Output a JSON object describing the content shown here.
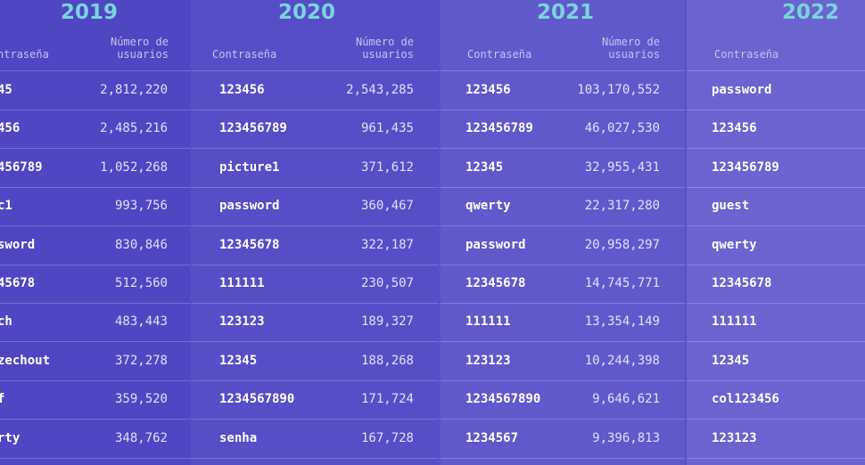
{
  "years": [
    {
      "year": "2019",
      "header_password": "ntraseña",
      "header_users": [
        "Número de",
        "usuarios"
      ],
      "rows": [
        {
          "password": "45",
          "users": "2,812,220"
        },
        {
          "password": "456",
          "users": "2,485,216"
        },
        {
          "password": "456789",
          "users": "1,052,268"
        },
        {
          "password": "c1",
          "users": "993,756"
        },
        {
          "password": "sword",
          "users": "830,846"
        },
        {
          "password": "45678",
          "users": "512,560"
        },
        {
          "password": "ch",
          "users": "483,443"
        },
        {
          "password": "zechout",
          "users": "372,278"
        },
        {
          "password": "f",
          "users": "359,520"
        },
        {
          "password": "rty",
          "users": "348,762"
        }
      ]
    },
    {
      "year": "2020",
      "header_password": "Contraseña",
      "header_users": [
        "Número de",
        "usuarios"
      ],
      "rows": [
        {
          "password": "123456",
          "users": "2,543,285"
        },
        {
          "password": "123456789",
          "users": "961,435"
        },
        {
          "password": "picture1",
          "users": "371,612"
        },
        {
          "password": "password",
          "users": "360,467"
        },
        {
          "password": "12345678",
          "users": "322,187"
        },
        {
          "password": "111111",
          "users": "230,507"
        },
        {
          "password": "123123",
          "users": "189,327"
        },
        {
          "password": "12345",
          "users": "188,268"
        },
        {
          "password": "1234567890",
          "users": "171,724"
        },
        {
          "password": "senha",
          "users": "167,728"
        }
      ]
    },
    {
      "year": "2021",
      "header_password": "Contraseña",
      "header_users": [
        "Número de",
        "usuarios"
      ],
      "rows": [
        {
          "password": "123456",
          "users": "103,170,552"
        },
        {
          "password": "123456789",
          "users": "46,027,530"
        },
        {
          "password": "12345",
          "users": "32,955,431"
        },
        {
          "password": "qwerty",
          "users": "22,317,280"
        },
        {
          "password": "password",
          "users": "20,958,297"
        },
        {
          "password": "12345678",
          "users": "14,745,771"
        },
        {
          "password": "111111",
          "users": "13,354,149"
        },
        {
          "password": "123123",
          "users": "10,244,398"
        },
        {
          "password": "1234567890",
          "users": "9,646,621"
        },
        {
          "password": "1234567",
          "users": "9,396,813"
        }
      ]
    },
    {
      "year": "2022",
      "header_password": "Contraseña",
      "header_users": [
        "",
        ""
      ],
      "rows": [
        {
          "password": "password",
          "users": ""
        },
        {
          "password": "123456",
          "users": ""
        },
        {
          "password": "123456789",
          "users": ""
        },
        {
          "password": "guest",
          "users": ""
        },
        {
          "password": "qwerty",
          "users": ""
        },
        {
          "password": "12345678",
          "users": ""
        },
        {
          "password": "111111",
          "users": ""
        },
        {
          "password": "12345",
          "users": ""
        },
        {
          "password": "col123456",
          "users": ""
        },
        {
          "password": "123123",
          "users": ""
        }
      ]
    }
  ],
  "colors": {
    "year_accent": "#78d5dc",
    "background": "#5a4fc8"
  }
}
